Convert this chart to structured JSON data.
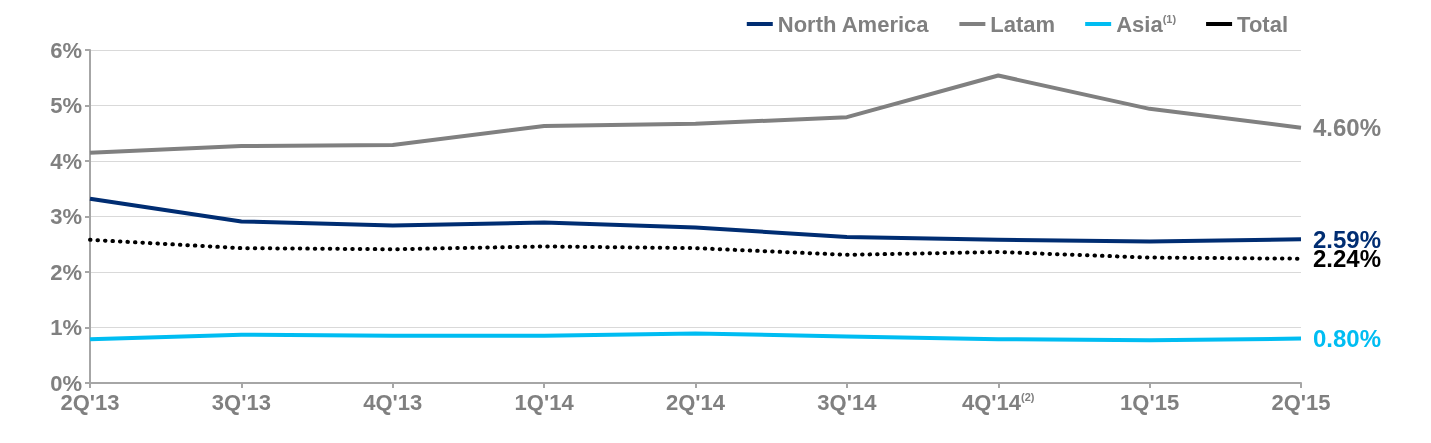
{
  "chart_data": {
    "type": "line",
    "categories": [
      "2Q'13",
      "3Q'13",
      "4Q'13",
      "1Q'14",
      "2Q'14",
      "3Q'14",
      "4Q'14$^{(2)}$",
      "1Q'15",
      "2Q'15"
    ],
    "ylim": [
      0,
      6
    ],
    "yticks": [
      {
        "value": 0,
        "label": "0%"
      },
      {
        "value": 1,
        "label": "1%"
      },
      {
        "value": 2,
        "label": "2%"
      },
      {
        "value": 3,
        "label": "3%"
      },
      {
        "value": 4,
        "label": "4%"
      },
      {
        "value": 5,
        "label": "5%"
      },
      {
        "value": 6,
        "label": "6%"
      }
    ],
    "grid": "y",
    "legend": "top right",
    "marker": "none",
    "series": [
      {
        "name": "North America",
        "color": "#002d72",
        "line_style": "solid",
        "values": [
          3.32,
          2.91,
          2.84,
          2.89,
          2.8,
          2.63,
          2.58,
          2.55,
          2.59
        ],
        "value_labels": [
          null,
          null,
          null,
          null,
          null,
          null,
          null,
          null,
          "2.59%"
        ]
      },
      {
        "name": "Latam",
        "color": "#808080",
        "line_style": "solid",
        "values": [
          4.15,
          4.27,
          4.29,
          4.63,
          4.67,
          4.79,
          5.54,
          4.94,
          4.6
        ],
        "value_labels": [
          null,
          null,
          null,
          null,
          null,
          null,
          null,
          null,
          "4.60%"
        ]
      },
      {
        "name": "Asia$^{(1)}$",
        "color": "#00bdf2",
        "line_style": "solid",
        "values": [
          0.79,
          0.87,
          0.85,
          0.85,
          0.89,
          0.84,
          0.79,
          0.77,
          0.8
        ],
        "value_labels": [
          null,
          null,
          null,
          null,
          null,
          null,
          null,
          null,
          "0.80%"
        ]
      },
      {
        "name": "Total",
        "color": "#000000",
        "line_style": "dotted",
        "values": [
          2.58,
          2.43,
          2.41,
          2.46,
          2.43,
          2.31,
          2.36,
          2.26,
          2.24
        ],
        "value_labels": [
          null,
          null,
          null,
          null,
          null,
          null,
          null,
          null,
          "2.24%"
        ]
      }
    ]
  }
}
